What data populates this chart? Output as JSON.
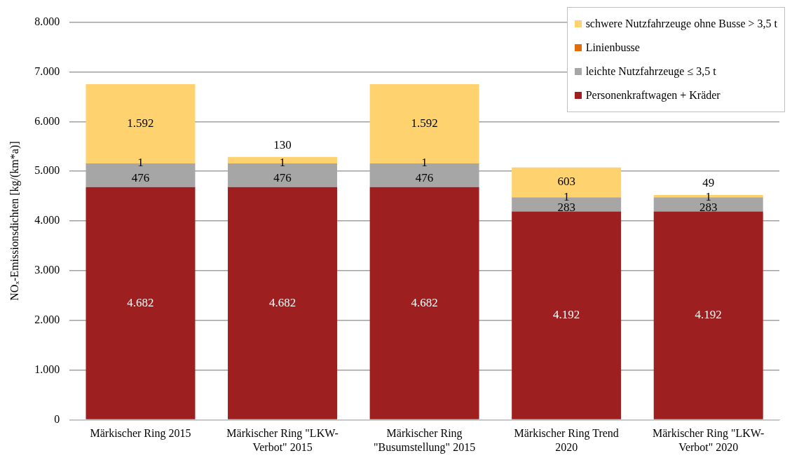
{
  "chart_data": {
    "type": "bar",
    "stacked": true,
    "ylabel": "NOₓ-Emissionsdichten [kg/(km*a)]",
    "categories": [
      "Märkischer Ring 2015",
      "Märkischer Ring \"LKW-\nVerbot\" 2015",
      "Märkischer Ring\n\"Busumstellung\" 2015",
      "Märkischer Ring Trend\n2020",
      "Märkischer Ring \"LKW-\nVerbot\" 2020"
    ],
    "series": [
      {
        "name": "Personenkraftwagen + Kräder",
        "color": "#9e1f1f",
        "values": [
          4682,
          4682,
          4682,
          4192,
          4192
        ],
        "value_labels": [
          "4.682",
          "4.682",
          "4.682",
          "4.192",
          "4.192"
        ]
      },
      {
        "name": "leichte Nutzfahrzeuge ≤ 3,5 t",
        "color": "#a6a6a6",
        "values": [
          476,
          476,
          476,
          283,
          283
        ],
        "value_labels": [
          "476",
          "476",
          "476",
          "283",
          "283"
        ]
      },
      {
        "name": "Linienbusse",
        "color": "#e36c09",
        "values": [
          1,
          1,
          1,
          1,
          1
        ],
        "value_labels": [
          "1",
          "1",
          "1",
          "1",
          "1"
        ]
      },
      {
        "name": "schwere Nutzfahrzeuge ohne Busse > 3,5 t",
        "color": "#fed36f",
        "values": [
          1592,
          130,
          1592,
          603,
          49
        ],
        "value_labels": [
          "1.592",
          "130",
          "1.592",
          "603",
          "49"
        ]
      }
    ],
    "ylim": [
      0,
      8000
    ],
    "yticks": [
      0,
      {
        "value": 1000,
        "label": "1.000"
      },
      {
        "value": 2000,
        "label": "2.000"
      },
      {
        "value": 3000,
        "label": "3.000"
      },
      {
        "value": 4000,
        "label": "4.000"
      },
      {
        "value": 5000,
        "label": "5.000"
      },
      {
        "value": 6000,
        "label": "6.000"
      },
      {
        "value": 7000,
        "label": "7.000"
      },
      {
        "value": 8000,
        "label": "8.000"
      }
    ],
    "grid": "y",
    "legend": "top right"
  }
}
